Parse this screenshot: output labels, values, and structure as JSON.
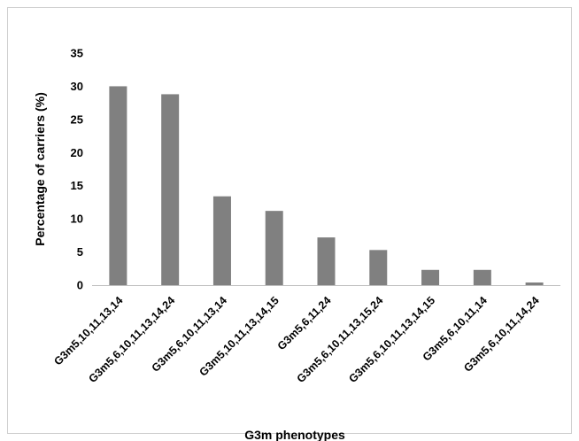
{
  "chart_data": {
    "type": "bar",
    "title": "",
    "xlabel": "G3m phenotypes",
    "ylabel": "Percentage of carriers  (%)",
    "ylim": [
      0,
      35
    ],
    "yticks": [
      0,
      5,
      10,
      15,
      20,
      25,
      30,
      35
    ],
    "grid": false,
    "legend": "none",
    "bar_color": "#808080",
    "categories": [
      "G3m5,10,11,13,14",
      "G3m5,6,10,11,13,14,24",
      "G3m5,6,10,11,13,14",
      "G3m5,10,11,13,14,15",
      "G3m5,6,11,24",
      "G3m5,6,10,11,13,15,24",
      "G3m5,6,10,11,13,14,15",
      "G3m5,6,10,11,14",
      "G3m5,6,10,11,14,24"
    ],
    "values": [
      30.0,
      28.8,
      13.4,
      11.2,
      7.2,
      5.3,
      2.3,
      2.3,
      0.4
    ]
  }
}
